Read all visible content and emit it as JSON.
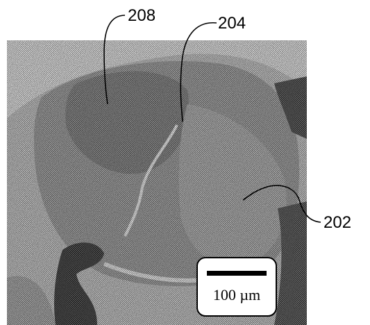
{
  "labels": [
    {
      "text": "208"
    },
    {
      "text": "204"
    },
    {
      "text": "202"
    }
  ],
  "scale_bar": {
    "label": "100 µm"
  }
}
